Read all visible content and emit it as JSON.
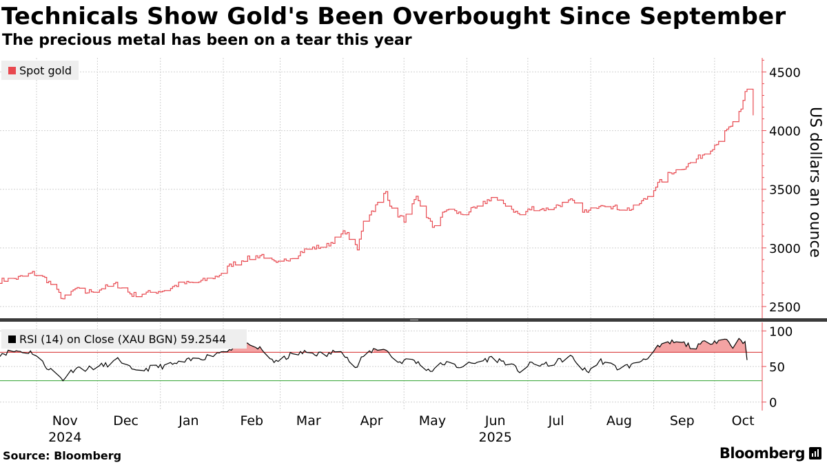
{
  "header": {
    "title": "Technicals Show Gold's Been Overbought Since September",
    "subtitle": "The precious metal has been on a tear this year"
  },
  "footer": {
    "source": "Source: Bloomberg",
    "brand": "Bloomberg"
  },
  "colors": {
    "price": "#e8484f",
    "rsi_line": "#000000",
    "rsi_overbought": "#d62728",
    "rsi_oversold": "#2ca02c",
    "rsi_fill": "#f4a3a3",
    "grid": "#cfcfcf",
    "legend_bg": "#eeeeee"
  },
  "chart_data": [
    {
      "type": "line",
      "name": "price-panel",
      "legend": "Spot gold",
      "ylabel": "US dollars an ounce",
      "ylim": [
        2400,
        4620
      ],
      "yticks": [
        2500,
        3000,
        3500,
        4000,
        4500
      ],
      "ytick_labels": [
        "2500",
        "3000",
        "3500",
        "4000",
        "4500"
      ],
      "xlim": [
        "2024-10-14",
        "2025-10-17"
      ],
      "keypoints": [
        [
          "2024-10-14",
          2720
        ],
        [
          "2024-10-22",
          2740
        ],
        [
          "2024-10-30",
          2785
        ],
        [
          "2024-11-05",
          2740
        ],
        [
          "2024-11-08",
          2690
        ],
        [
          "2024-11-14",
          2565
        ],
        [
          "2024-11-20",
          2650
        ],
        [
          "2024-11-25",
          2620
        ],
        [
          "2024-12-02",
          2650
        ],
        [
          "2024-12-10",
          2690
        ],
        [
          "2024-12-18",
          2600
        ],
        [
          "2024-12-25",
          2615
        ],
        [
          "2025-01-03",
          2640
        ],
        [
          "2025-01-10",
          2690
        ],
        [
          "2025-01-20",
          2710
        ],
        [
          "2025-01-29",
          2760
        ],
        [
          "2025-02-05",
          2860
        ],
        [
          "2025-02-11",
          2900
        ],
        [
          "2025-02-20",
          2940
        ],
        [
          "2025-02-27",
          2860
        ],
        [
          "2025-03-05",
          2910
        ],
        [
          "2025-03-14",
          2990
        ],
        [
          "2025-03-24",
          3020
        ],
        [
          "2025-04-02",
          3140
        ],
        [
          "2025-04-08",
          2980
        ],
        [
          "2025-04-11",
          3240
        ],
        [
          "2025-04-16",
          3330
        ],
        [
          "2025-04-22",
          3480
        ],
        [
          "2025-04-25",
          3320
        ],
        [
          "2025-05-01",
          3240
        ],
        [
          "2025-05-07",
          3420
        ],
        [
          "2025-05-15",
          3180
        ],
        [
          "2025-05-22",
          3330
        ],
        [
          "2025-05-29",
          3290
        ],
        [
          "2025-06-06",
          3340
        ],
        [
          "2025-06-13",
          3430
        ],
        [
          "2025-06-20",
          3370
        ],
        [
          "2025-06-27",
          3280
        ],
        [
          "2025-07-03",
          3340
        ],
        [
          "2025-07-10",
          3330
        ],
        [
          "2025-07-22",
          3400
        ],
        [
          "2025-07-30",
          3300
        ],
        [
          "2025-08-06",
          3380
        ],
        [
          "2025-08-14",
          3340
        ],
        [
          "2025-08-21",
          3330
        ],
        [
          "2025-08-28",
          3420
        ],
        [
          "2025-09-02",
          3530
        ],
        [
          "2025-09-09",
          3640
        ],
        [
          "2025-09-16",
          3690
        ],
        [
          "2025-09-23",
          3770
        ],
        [
          "2025-09-30",
          3860
        ],
        [
          "2025-10-07",
          4000
        ],
        [
          "2025-10-10",
          4060
        ],
        [
          "2025-10-14",
          4170
        ],
        [
          "2025-10-16",
          4330
        ],
        [
          "2025-10-17",
          4360
        ],
        [
          "2025-10-20",
          4130
        ]
      ]
    },
    {
      "type": "line",
      "name": "rsi-panel",
      "legend": "RSI (14)  on Close (XAU BGN) 59.2544",
      "ylim": [
        -12,
        112
      ],
      "yticks": [
        0,
        50,
        100
      ],
      "ytick_labels": [
        "0",
        "50",
        "100"
      ],
      "overbought": 70,
      "oversold": 30,
      "xlim": [
        "2024-10-14",
        "2025-10-17"
      ],
      "keypoints": [
        [
          "2024-10-14",
          68
        ],
        [
          "2024-10-22",
          72
        ],
        [
          "2024-10-30",
          70
        ],
        [
          "2024-11-05",
          52
        ],
        [
          "2024-11-14",
          32
        ],
        [
          "2024-11-20",
          48
        ],
        [
          "2024-11-26",
          47
        ],
        [
          "2024-12-05",
          52
        ],
        [
          "2024-12-12",
          60
        ],
        [
          "2024-12-19",
          42
        ],
        [
          "2024-12-27",
          48
        ],
        [
          "2025-01-06",
          52
        ],
        [
          "2025-01-15",
          58
        ],
        [
          "2025-01-24",
          64
        ],
        [
          "2025-02-03",
          74
        ],
        [
          "2025-02-11",
          80
        ],
        [
          "2025-02-19",
          75
        ],
        [
          "2025-02-27",
          55
        ],
        [
          "2025-03-06",
          66
        ],
        [
          "2025-03-14",
          70
        ],
        [
          "2025-03-24",
          66
        ],
        [
          "2025-03-31",
          75
        ],
        [
          "2025-04-07",
          46
        ],
        [
          "2025-04-11",
          64
        ],
        [
          "2025-04-16",
          74
        ],
        [
          "2025-04-21",
          76
        ],
        [
          "2025-04-28",
          56
        ],
        [
          "2025-05-05",
          60
        ],
        [
          "2025-05-14",
          44
        ],
        [
          "2025-05-21",
          55
        ],
        [
          "2025-05-28",
          50
        ],
        [
          "2025-06-04",
          54
        ],
        [
          "2025-06-13",
          62
        ],
        [
          "2025-06-20",
          56
        ],
        [
          "2025-06-27",
          44
        ],
        [
          "2025-07-03",
          54
        ],
        [
          "2025-07-11",
          52
        ],
        [
          "2025-07-22",
          64
        ],
        [
          "2025-07-30",
          42
        ],
        [
          "2025-08-06",
          58
        ],
        [
          "2025-08-14",
          48
        ],
        [
          "2025-08-22",
          52
        ],
        [
          "2025-08-29",
          64
        ],
        [
          "2025-09-03",
          76
        ],
        [
          "2025-09-10",
          84
        ],
        [
          "2025-09-16",
          82
        ],
        [
          "2025-09-22",
          76
        ],
        [
          "2025-09-26",
          84
        ],
        [
          "2025-10-01",
          86
        ],
        [
          "2025-10-07",
          88
        ],
        [
          "2025-10-10",
          78
        ],
        [
          "2025-10-14",
          90
        ],
        [
          "2025-10-16",
          82
        ],
        [
          "2025-10-17",
          59
        ]
      ]
    }
  ],
  "x_axis": {
    "months": [
      {
        "label": "Nov",
        "date": "2024-11-15"
      },
      {
        "label": "Dec",
        "date": "2024-12-15"
      },
      {
        "label": "Jan",
        "date": "2025-01-15"
      },
      {
        "label": "Feb",
        "date": "2025-02-15"
      },
      {
        "label": "Mar",
        "date": "2025-03-15"
      },
      {
        "label": "Apr",
        "date": "2025-04-15"
      },
      {
        "label": "May",
        "date": "2025-05-15"
      },
      {
        "label": "Jun",
        "date": "2025-06-15"
      },
      {
        "label": "Jul",
        "date": "2025-07-15"
      },
      {
        "label": "Aug",
        "date": "2025-08-15"
      },
      {
        "label": "Sep",
        "date": "2025-09-15"
      },
      {
        "label": "Oct",
        "date": "2025-10-15"
      }
    ],
    "gridlines": [
      "2024-11-01",
      "2024-12-01",
      "2025-01-01",
      "2025-02-01",
      "2025-03-01",
      "2025-04-01",
      "2025-05-01",
      "2025-06-01",
      "2025-07-01",
      "2025-08-01",
      "2025-09-01",
      "2025-10-01"
    ],
    "years": [
      {
        "label": "2024",
        "date": "2024-11-15"
      },
      {
        "label": "2025",
        "date": "2025-06-15"
      }
    ]
  }
}
